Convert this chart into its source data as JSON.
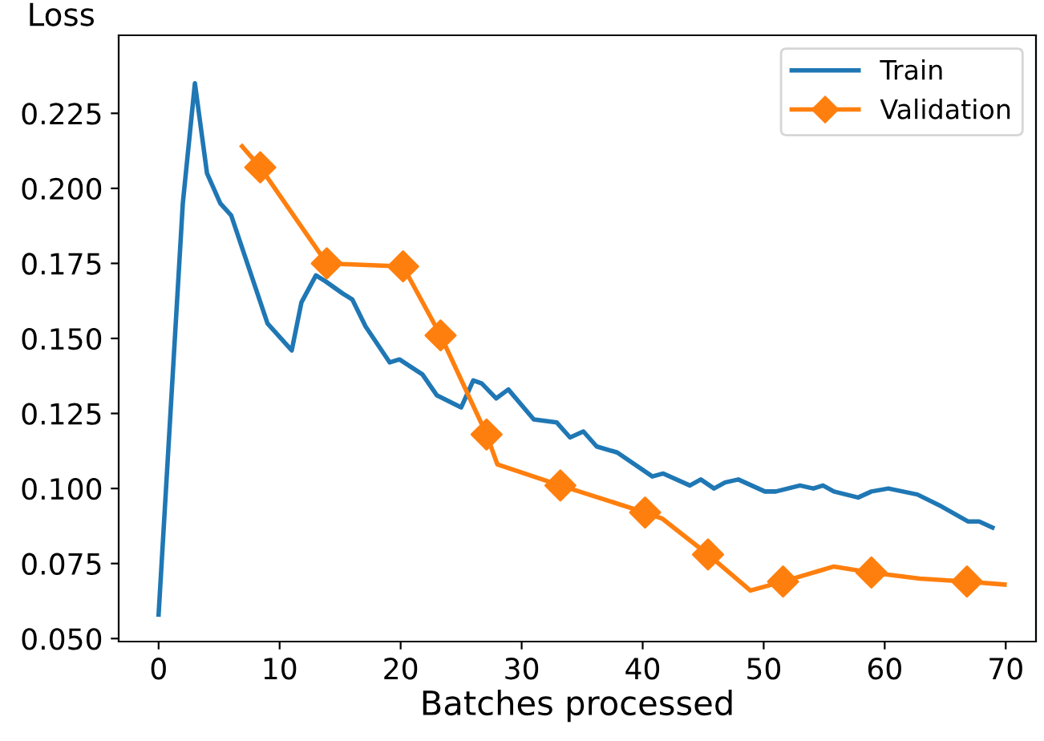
{
  "chart_data": {
    "type": "line",
    "xlabel": "Batches processed",
    "ylabel": "Loss",
    "xlim": [
      -3.3,
      72.5
    ],
    "ylim": [
      0.049,
      0.251
    ],
    "xticks": [
      0,
      10,
      20,
      30,
      40,
      50,
      60,
      70
    ],
    "yticks": [
      {
        "value": 0.05,
        "label": "0.050"
      },
      {
        "value": 0.075,
        "label": "0.075"
      },
      {
        "value": 0.1,
        "label": "0.100"
      },
      {
        "value": 0.125,
        "label": "0.125"
      },
      {
        "value": 0.15,
        "label": "0.150"
      },
      {
        "value": 0.175,
        "label": "0.175"
      },
      {
        "value": 0.2,
        "label": "0.200"
      },
      {
        "value": 0.225,
        "label": "0.225"
      }
    ],
    "grid": false,
    "legend": "top right",
    "line_style": "solid",
    "series": [
      {
        "name": "Train",
        "color": "#1f77b4",
        "marker": "none",
        "x": [
          0,
          2.0,
          3.0,
          4.0,
          5.1,
          6.0,
          9.0,
          11.0,
          11.8,
          13.0,
          13.8,
          15.2,
          16.0,
          17.1,
          19.1,
          19.9,
          21.8,
          23.0,
          25.0,
          26.0,
          26.7,
          27.9,
          28.9,
          31.0,
          32.9,
          34.0,
          35.1,
          36.2,
          37.9,
          40.8,
          41.7,
          43.9,
          44.8,
          45.9,
          46.8,
          47.9,
          50.1,
          51.0,
          53.0,
          54.1,
          54.9,
          55.8,
          57.8,
          58.9,
          60.3,
          62.7,
          64.7,
          66.9,
          67.8,
          68.9
        ],
        "values": [
          0.058,
          0.195,
          0.235,
          0.205,
          0.195,
          0.191,
          0.155,
          0.146,
          0.162,
          0.171,
          0.169,
          0.165,
          0.163,
          0.154,
          0.142,
          0.143,
          0.138,
          0.131,
          0.127,
          0.136,
          0.135,
          0.13,
          0.133,
          0.123,
          0.122,
          0.117,
          0.119,
          0.114,
          0.112,
          0.104,
          0.105,
          0.101,
          0.103,
          0.1,
          0.102,
          0.103,
          0.099,
          0.099,
          0.101,
          0.1,
          0.101,
          0.099,
          0.097,
          0.099,
          0.1,
          0.098,
          0.094,
          0.089,
          0.089,
          0.087
        ]
      },
      {
        "color": "#ff7f0e",
        "marker": "none",
        "x": [
          6.9,
          8.4,
          13.9,
          20.2,
          23.3,
          27.1,
          28.0,
          33.2,
          40.2,
          41.6,
          45.4,
          48.9,
          51.6,
          55.8,
          58.9,
          62.9,
          66.8,
          69.9
        ],
        "values": [
          0.214,
          0.207,
          0.175,
          0.174,
          0.151,
          0.118,
          0.108,
          0.101,
          0.092,
          0.09,
          0.078,
          0.066,
          0.069,
          0.074,
          0.072,
          0.07,
          0.069,
          0.068
        ]
      },
      {
        "name": "Validation",
        "type": "scatter",
        "color": "#ff7f0e",
        "marker": "diamond",
        "x": [
          8.4,
          13.9,
          20.2,
          23.3,
          27.1,
          33.2,
          40.2,
          45.4,
          51.6,
          58.9,
          66.8
        ],
        "values": [
          0.207,
          0.175,
          0.174,
          0.151,
          0.118,
          0.101,
          0.092,
          0.078,
          0.069,
          0.072,
          0.069
        ]
      }
    ]
  }
}
